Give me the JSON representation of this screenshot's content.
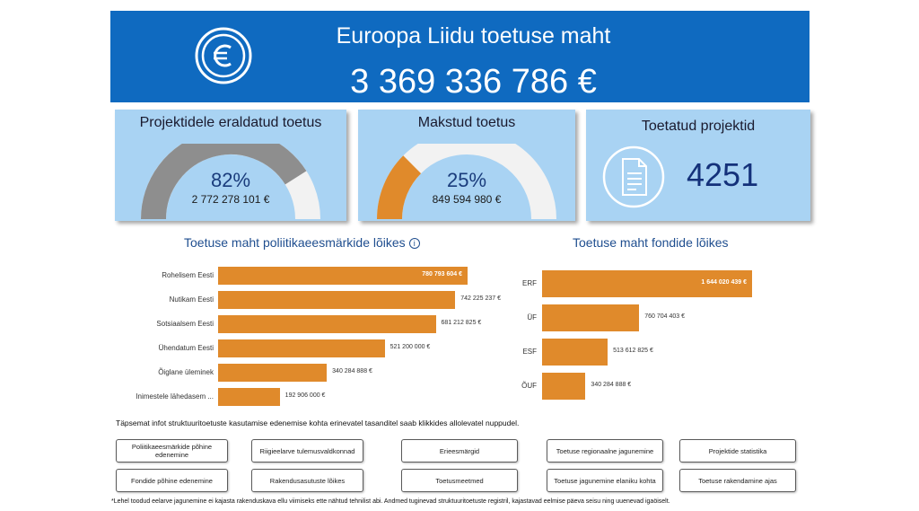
{
  "header": {
    "title": "Euroopa Liidu toetuse maht",
    "amount": "3 369 336 786 €",
    "icon": "euro-icon",
    "background": "#0f6ac0"
  },
  "kpi": {
    "allocated": {
      "title": "Projektidele eraldatud toetus",
      "percent": "82%",
      "percent_value": 0.82,
      "amount": "2 772 278 101 €",
      "fill_color": "#8e8e8e"
    },
    "paid": {
      "title": "Makstud toetus",
      "percent": "25%",
      "percent_value": 0.25,
      "amount": "849 594 980 €",
      "fill_color": "#e08a2b"
    },
    "projects": {
      "title": "Toetatud projektid",
      "count": "4251",
      "icon": "document-icon"
    }
  },
  "sections": {
    "policy_title": "Toetuse maht poliitikaeesmärkide lõikes",
    "policy_info_icon": "i",
    "fund_title": "Toetuse maht fondide lõikes"
  },
  "chart_data": [
    {
      "type": "bar",
      "orientation": "horizontal",
      "title": "Toetuse maht poliitikaeesmärkide lõikes",
      "categories": [
        "Rohelisem Eesti",
        "Nutikam Eesti",
        "Sotsiaalsem Eesti",
        "Ühendatum Eesti",
        "Õiglane üleminek",
        "Inimestele lähedasem ..."
      ],
      "values": [
        780793604,
        742225237,
        681212825,
        521200000,
        340284888,
        192906000
      ],
      "value_labels": [
        "780 793 604 €",
        "742 225 237 €",
        "681 212 825 €",
        "521 200 000 €",
        "340 284 888 €",
        "192 906 000 €"
      ],
      "color": "#e08a2b"
    },
    {
      "type": "bar",
      "orientation": "horizontal",
      "title": "Toetuse maht fondide lõikes",
      "categories": [
        "ERF",
        "ÜF",
        "ESF",
        "ÕUF"
      ],
      "values": [
        1644020439,
        760704403,
        513612825,
        340284888
      ],
      "value_labels": [
        "1 644 020 439 €",
        "760 704 403 €",
        "513 612 825 €",
        "340 284 888 €"
      ],
      "color": "#e08a2b"
    }
  ],
  "note": "Täpsemat infot struktuuritoetuste kasutamise edenemise kohta erinevatel tasanditel saab klikkides allolevatel nuppudel.",
  "buttons": {
    "b1": "Poliitikaeesmärkide põhine edenemine",
    "b2": "Riigieelarve tulemusvaldkonnad",
    "b3": "Erieesmärgid",
    "b4": "Toetuse regionaalne jagunemine",
    "b5": "Projektide statistika",
    "b6": "Fondide põhine edenemine",
    "b7": "Rakendusasutuste lõikes",
    "b8": "Toetusmeetmed",
    "b9": "Toetuse jagunemine elaniku kohta",
    "b10": "Toetuse rakendamine ajas"
  },
  "footnote": "*Lehel toodud eelarve jagunemine ei kajasta rakenduskava ellu viimiseks ette nähtud tehnilist abi. Andmed tuginevad struktuuritoetuste registril, kajastavad eelmise päeva seisu ning uuenevad igaöiselt."
}
